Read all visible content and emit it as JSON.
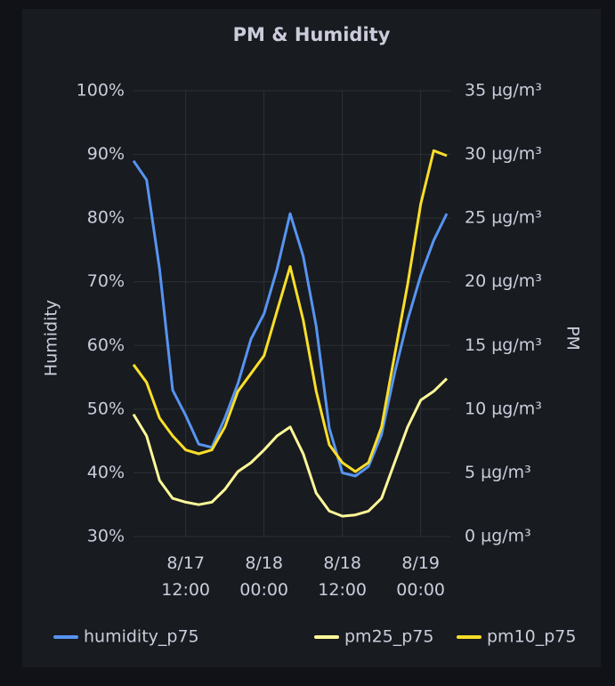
{
  "chart_data": {
    "type": "line",
    "title": "PM & Humidity",
    "y_label": "Humidity",
    "y2_label": "PM",
    "x": [
      "8/17 04:00",
      "8/17 06:00",
      "8/17 08:00",
      "8/17 10:00",
      "8/17 12:00",
      "8/17 14:00",
      "8/17 16:00",
      "8/17 18:00",
      "8/17 20:00",
      "8/17 22:00",
      "8/18 00:00",
      "8/18 02:00",
      "8/18 04:00",
      "8/18 06:00",
      "8/18 08:00",
      "8/18 10:00",
      "8/18 12:00",
      "8/18 14:00",
      "8/18 16:00",
      "8/18 18:00",
      "8/18 20:00",
      "8/18 22:00",
      "8/19 00:00",
      "8/19 02:00",
      "8/19 04:00"
    ],
    "xlim": [
      "8/17 04:00",
      "8/19 04:00"
    ],
    "xticks": [
      "8/17 12:00",
      "8/18 00:00",
      "8/18 12:00",
      "8/19 00:00"
    ],
    "ylim": [
      30,
      100
    ],
    "yticks": [
      {
        "value": 30,
        "label": "30%"
      },
      {
        "value": 40,
        "label": "40%"
      },
      {
        "value": 50,
        "label": "50%"
      },
      {
        "value": 60,
        "label": "60%"
      },
      {
        "value": 70,
        "label": "70%"
      },
      {
        "value": 80,
        "label": "80%"
      },
      {
        "value": 90,
        "label": "90%"
      },
      {
        "value": 100,
        "label": "100%"
      }
    ],
    "y2lim": [
      0,
      35
    ],
    "y2ticks": [
      {
        "value": 0,
        "label": "0 µg/m³"
      },
      {
        "value": 5,
        "label": "5 µg/m³"
      },
      {
        "value": 10,
        "label": "10 µg/m³"
      },
      {
        "value": 15,
        "label": "15 µg/m³"
      },
      {
        "value": 20,
        "label": "20 µg/m³"
      },
      {
        "value": 25,
        "label": "25 µg/m³"
      },
      {
        "value": 30,
        "label": "30 µg/m³"
      },
      {
        "value": 35,
        "label": "35 µg/m³"
      }
    ],
    "grid": true,
    "legend": "bottom",
    "series": [
      {
        "name": "humidity_p75",
        "color": "#5794f2",
        "axis": "y",
        "values": [
          89,
          86,
          72,
          53,
          49,
          44.5,
          44,
          48.6,
          54,
          61,
          65,
          72,
          80.7,
          74,
          63,
          47,
          40,
          39.5,
          41,
          46,
          55.6,
          64,
          71,
          76.5,
          80.7
        ]
      },
      {
        "name": "pm25_p75",
        "color": "#fff899",
        "axis": "y2",
        "values": [
          9.6,
          7.9,
          4.4,
          3.0,
          2.7,
          2.5,
          2.7,
          3.7,
          5.1,
          5.8,
          6.8,
          7.9,
          8.6,
          6.5,
          3.4,
          2.0,
          1.6,
          1.7,
          2.0,
          3.0,
          5.8,
          8.6,
          10.7,
          11.4,
          12.4
        ]
      },
      {
        "name": "pm10_p75",
        "color": "#fade2a",
        "axis": "y2",
        "values": [
          13.5,
          12.1,
          9.3,
          7.9,
          6.8,
          6.5,
          6.8,
          8.6,
          11.4,
          12.8,
          14.2,
          17.7,
          21.2,
          17,
          11.4,
          7.2,
          5.8,
          5.1,
          5.8,
          8.6,
          14.2,
          19.8,
          26.1,
          30.3,
          29.9
        ]
      }
    ]
  }
}
